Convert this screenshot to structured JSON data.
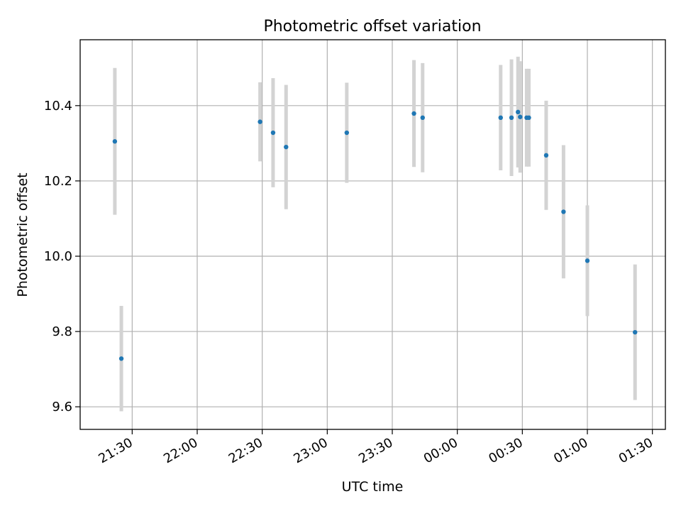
{
  "chart_data": {
    "type": "scatter",
    "title": "Photometric offset variation",
    "xlabel": "UTC time",
    "ylabel": "Photometric offset",
    "x_ticks": [
      "21:30",
      "22:00",
      "22:30",
      "23:00",
      "23:30",
      "00:00",
      "00:30",
      "01:00",
      "01:30"
    ],
    "y_ticks": [
      "9.6",
      "9.8",
      "10.0",
      "10.2",
      "10.4"
    ],
    "xlim_minutes": [
      -24,
      246
    ],
    "ylim": [
      9.54,
      10.575
    ],
    "grid": true,
    "colors": {
      "point": "#1f77b4",
      "errorbar": "#d3d3d3",
      "grid": "#b0b0b0"
    },
    "points": [
      {
        "t": "21:22",
        "y": 10.305,
        "yerr": 0.195
      },
      {
        "t": "21:25",
        "y": 9.728,
        "yerr": 0.14
      },
      {
        "t": "22:29",
        "y": 10.357,
        "yerr": 0.105
      },
      {
        "t": "22:35",
        "y": 10.328,
        "yerr": 0.145
      },
      {
        "t": "22:41",
        "y": 10.29,
        "yerr": 0.165
      },
      {
        "t": "23:09",
        "y": 10.328,
        "yerr": 0.133
      },
      {
        "t": "23:40",
        "y": 10.379,
        "yerr": 0.142
      },
      {
        "t": "23:44",
        "y": 10.368,
        "yerr": 0.145
      },
      {
        "t": "00:20",
        "y": 10.368,
        "yerr": 0.14
      },
      {
        "t": "00:25",
        "y": 10.368,
        "yerr": 0.155
      },
      {
        "t": "00:28",
        "y": 10.383,
        "yerr": 0.147
      },
      {
        "t": "00:29",
        "y": 10.37,
        "yerr": 0.148
      },
      {
        "t": "00:32",
        "y": 10.368,
        "yerr": 0.13
      },
      {
        "t": "00:33",
        "y": 10.368,
        "yerr": 0.13
      },
      {
        "t": "00:41",
        "y": 10.268,
        "yerr": 0.145
      },
      {
        "t": "00:49",
        "y": 10.118,
        "yerr": 0.177
      },
      {
        "t": "01:00",
        "y": 9.988,
        "yerr": 0.147
      },
      {
        "t": "01:22",
        "y": 9.798,
        "yerr": 0.18
      }
    ]
  }
}
